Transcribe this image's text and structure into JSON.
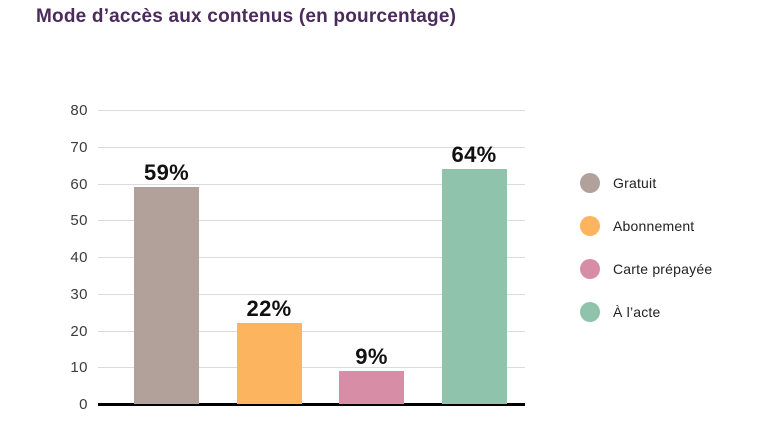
{
  "chart_data": {
    "type": "bar",
    "title": "Mode d’accès aux contenus (en pourcentage)",
    "categories": [
      "Gratuit",
      "Abonnement",
      "Carte prépayée",
      "À l’acte"
    ],
    "values": [
      59,
      22,
      9,
      64
    ],
    "value_labels": [
      "59%",
      "22%",
      "9%",
      "64%"
    ],
    "bar_colors": [
      "#B1A19A",
      "#FCB45F",
      "#D88DA6",
      "#90C3AC"
    ],
    "xlabel": "",
    "ylabel": "",
    "ylim": [
      0,
      80
    ],
    "yticks": [
      0,
      10,
      20,
      30,
      40,
      50,
      60,
      70,
      80
    ],
    "grid": true,
    "legend_position": "right"
  },
  "legend": {
    "items": [
      {
        "label": "Gratuit",
        "color": "#B1A19A"
      },
      {
        "label": "Abonnement",
        "color": "#FCB45F"
      },
      {
        "label": "Carte prépayée",
        "color": "#D88DA6"
      },
      {
        "label": "À l’acte",
        "color": "#90C3AC"
      }
    ]
  },
  "colors": {
    "title": "#4B2A5C",
    "gridline": "#DBDBDB",
    "axis": "#000000",
    "tick_label": "#3C3C3C",
    "value_label": "#111111",
    "legend_label": "#222222"
  }
}
